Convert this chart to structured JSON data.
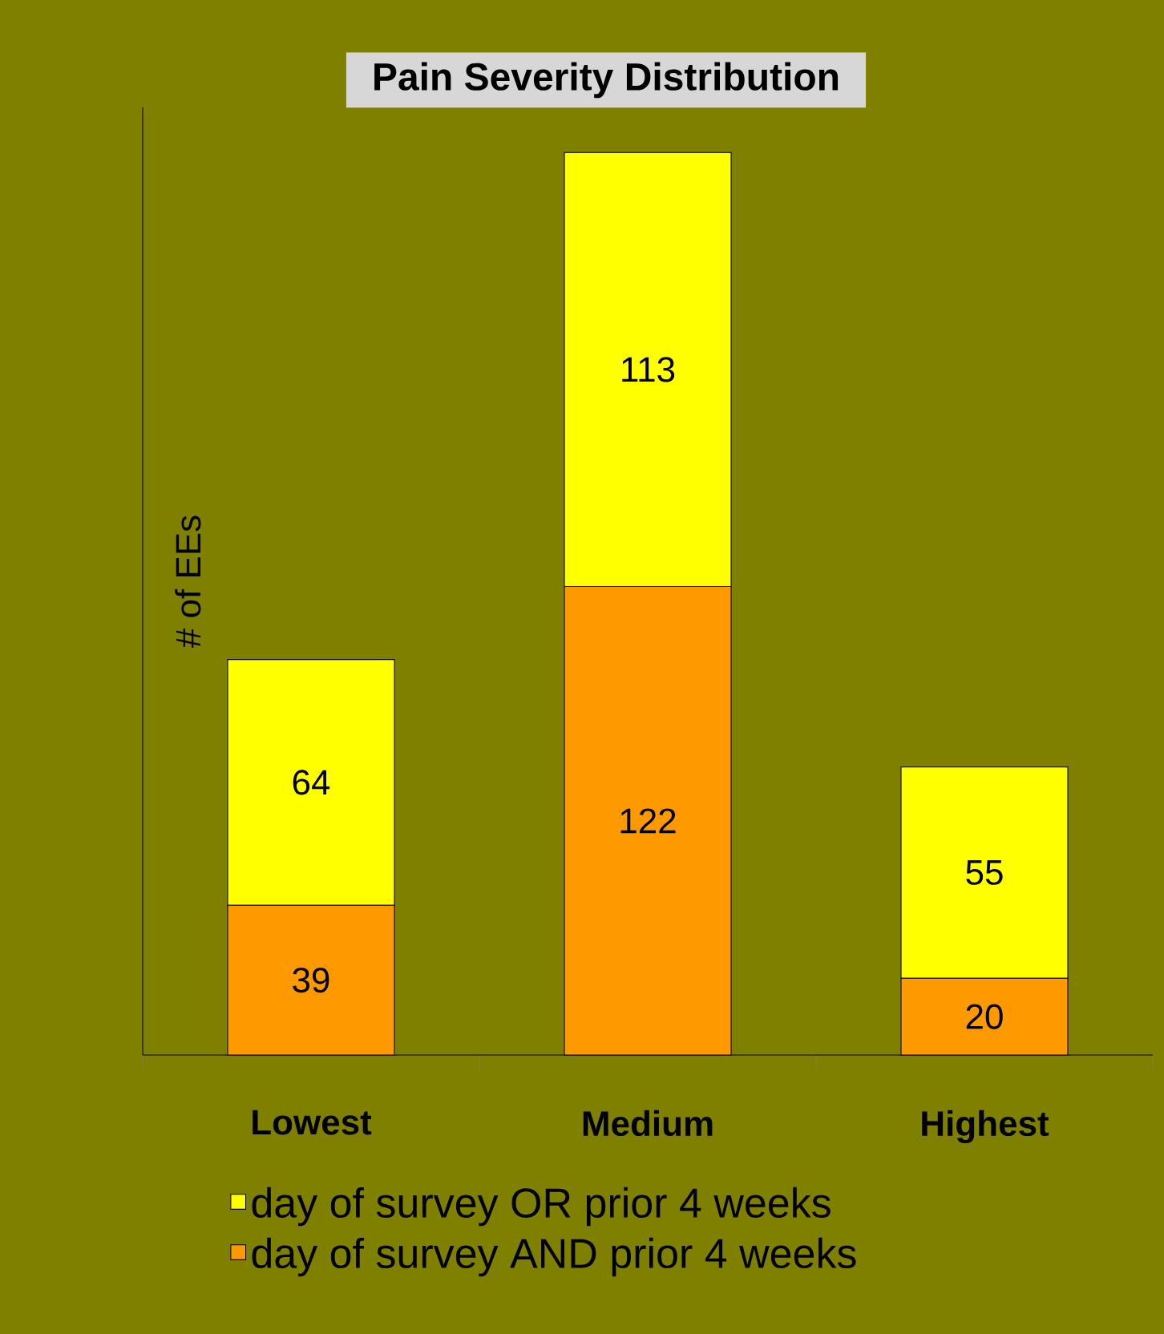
{
  "chart_data": {
    "type": "bar",
    "title": "Pain Severity Distribution",
    "ylabel": "# of EEs",
    "categories": [
      "Lowest",
      "Medium",
      "Highest"
    ],
    "stacked": true,
    "data_labels": true,
    "legend": "bottom",
    "series": [
      {
        "name": "day of survey AND prior 4 weeks",
        "color": "#ff9900",
        "values": [
          39,
          122,
          20
        ]
      },
      {
        "name": "day of survey OR prior 4 weeks",
        "color": "#ffff00",
        "values": [
          64,
          113,
          55
        ]
      }
    ]
  }
}
